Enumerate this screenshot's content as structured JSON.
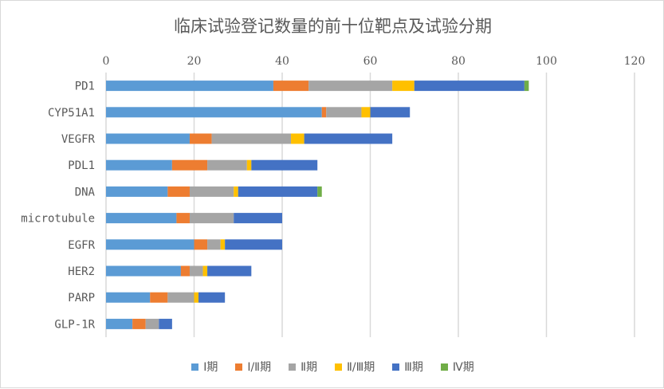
{
  "chart_data": {
    "type": "bar",
    "orientation": "horizontal",
    "stacked": true,
    "title": "临床试验登记数量的前十位靶点及试验分期",
    "categories": [
      "PD1",
      "CYP51A1",
      "VEGFR",
      "PDL1",
      "DNA",
      "microtubule",
      "EGFR",
      "HER2",
      "PARP",
      "GLP-1R"
    ],
    "series": [
      {
        "name": "Ⅰ期",
        "color": "#5b9bd5",
        "values": [
          38,
          49,
          19,
          15,
          14,
          16,
          20,
          17,
          10,
          6
        ]
      },
      {
        "name": "Ⅰ/Ⅱ期",
        "color": "#ed7d31",
        "values": [
          8,
          1,
          5,
          8,
          5,
          3,
          3,
          2,
          4,
          3
        ]
      },
      {
        "name": "Ⅱ期",
        "color": "#a5a5a5",
        "values": [
          19,
          8,
          18,
          9,
          10,
          10,
          3,
          3,
          6,
          3
        ]
      },
      {
        "name": "Ⅱ/Ⅲ期",
        "color": "#ffc000",
        "values": [
          5,
          2,
          3,
          1,
          1,
          0,
          1,
          1,
          1,
          0
        ]
      },
      {
        "name": "Ⅲ期",
        "color": "#4472c4",
        "values": [
          25,
          9,
          20,
          15,
          18,
          11,
          13,
          10,
          6,
          3
        ]
      },
      {
        "name": "Ⅳ期",
        "color": "#70ad47",
        "values": [
          1,
          0,
          0,
          0,
          1,
          0,
          0,
          0,
          0,
          0
        ]
      }
    ],
    "xlim": [
      0,
      120
    ],
    "xticks": [
      0,
      20,
      40,
      60,
      80,
      100,
      120
    ],
    "axis_position": "top",
    "grid": true,
    "legend": "bottom"
  }
}
